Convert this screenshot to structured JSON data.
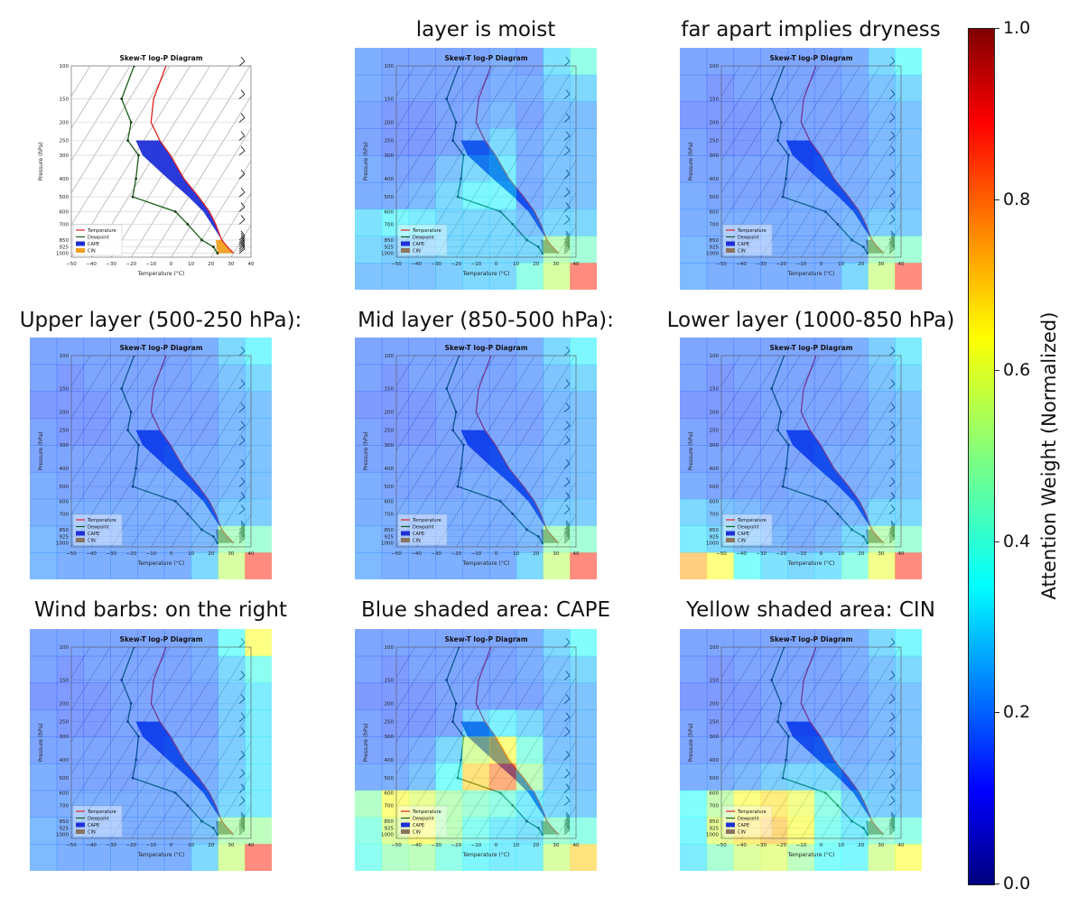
{
  "colorbar": {
    "title": "Attention Weight (Normalized)",
    "min": 0.0,
    "max": 1.0,
    "ticks": [
      "0.0",
      "0.2",
      "0.4",
      "0.6",
      "0.8",
      "1.0"
    ],
    "colormap": "jet"
  },
  "chart_data": [
    {
      "type": "line",
      "panel_title": "",
      "title": "Skew-T log-P Diagram",
      "xlabel": "Temperature (°C)",
      "ylabel": "Pressure (hPa)",
      "x_ticks": [
        "−50",
        "−40",
        "−30",
        "−20",
        "−10",
        "0",
        "10",
        "20",
        "30",
        "40"
      ],
      "pressure_ticks": [
        "100",
        "150",
        "200",
        "250",
        "300",
        "400",
        "500",
        "600",
        "700",
        "850",
        "925",
        "1000"
      ],
      "legend": [
        "Temperature",
        "Dewpoint",
        "CAPE",
        "CIN"
      ],
      "legend_placement": "lower-left",
      "overlay": false
    },
    {
      "type": "heatmap",
      "panel_title": "layer is moist",
      "title": "Skew-T log-P Diagram",
      "xlabel": "Temperature (°C)",
      "ylabel": "Pressure (hPa)",
      "legend": [
        "Temperature",
        "Dewpoint",
        "CAPE",
        "CIN"
      ],
      "overlay": true,
      "attention_grid": [
        [
          0.22,
          0.2,
          0.2,
          0.2,
          0.2,
          0.22,
          0.2,
          0.32,
          0.42
        ],
        [
          0.22,
          0.2,
          0.2,
          0.2,
          0.2,
          0.22,
          0.22,
          0.28,
          0.3
        ],
        [
          0.2,
          0.18,
          0.18,
          0.2,
          0.22,
          0.24,
          0.2,
          0.25,
          0.25
        ],
        [
          0.2,
          0.18,
          0.18,
          0.2,
          0.24,
          0.3,
          0.22,
          0.26,
          0.26
        ],
        [
          0.22,
          0.2,
          0.2,
          0.26,
          0.3,
          0.34,
          0.22,
          0.26,
          0.26
        ],
        [
          0.22,
          0.22,
          0.24,
          0.3,
          0.36,
          0.36,
          0.22,
          0.26,
          0.26
        ],
        [
          0.32,
          0.36,
          0.34,
          0.3,
          0.3,
          0.3,
          0.26,
          0.3,
          0.3
        ],
        [
          0.3,
          0.28,
          0.28,
          0.3,
          0.3,
          0.3,
          0.3,
          0.5,
          0.45
        ],
        [
          0.26,
          0.26,
          0.26,
          0.28,
          0.3,
          0.3,
          0.42,
          0.55,
          0.85
        ]
      ]
    },
    {
      "type": "heatmap",
      "panel_title": "far apart implies dryness",
      "title": "Skew-T log-P Diagram",
      "xlabel": "Temperature (°C)",
      "ylabel": "Pressure (hPa)",
      "legend": [
        "Temperature",
        "Dewpoint",
        "CAPE",
        "CIN"
      ],
      "overlay": true,
      "attention_grid": [
        [
          0.2,
          0.2,
          0.2,
          0.2,
          0.2,
          0.2,
          0.22,
          0.3,
          0.38
        ],
        [
          0.2,
          0.18,
          0.2,
          0.2,
          0.2,
          0.2,
          0.22,
          0.26,
          0.3
        ],
        [
          0.18,
          0.18,
          0.18,
          0.2,
          0.2,
          0.2,
          0.2,
          0.24,
          0.26
        ],
        [
          0.2,
          0.18,
          0.18,
          0.2,
          0.2,
          0.2,
          0.2,
          0.24,
          0.26
        ],
        [
          0.2,
          0.2,
          0.2,
          0.2,
          0.2,
          0.22,
          0.22,
          0.24,
          0.26
        ],
        [
          0.22,
          0.2,
          0.2,
          0.2,
          0.22,
          0.22,
          0.22,
          0.24,
          0.26
        ],
        [
          0.22,
          0.22,
          0.22,
          0.22,
          0.22,
          0.22,
          0.24,
          0.28,
          0.28
        ],
        [
          0.24,
          0.22,
          0.22,
          0.22,
          0.22,
          0.22,
          0.24,
          0.48,
          0.45
        ],
        [
          0.24,
          0.22,
          0.22,
          0.22,
          0.22,
          0.22,
          0.3,
          0.55,
          0.85
        ]
      ]
    },
    {
      "type": "heatmap",
      "panel_title": "Upper layer (500-250 hPa):",
      "title": "Skew-T log-P Diagram",
      "xlabel": "Temperature (°C)",
      "ylabel": "Pressure (hPa)",
      "legend": [
        "Temperature",
        "Dewpoint",
        "CAPE",
        "CIN"
      ],
      "overlay": true,
      "attention_grid": [
        [
          0.2,
          0.2,
          0.2,
          0.2,
          0.2,
          0.2,
          0.22,
          0.3,
          0.36
        ],
        [
          0.2,
          0.18,
          0.2,
          0.2,
          0.2,
          0.2,
          0.22,
          0.26,
          0.3
        ],
        [
          0.18,
          0.18,
          0.18,
          0.2,
          0.2,
          0.2,
          0.2,
          0.24,
          0.26
        ],
        [
          0.2,
          0.18,
          0.18,
          0.2,
          0.2,
          0.2,
          0.2,
          0.24,
          0.26
        ],
        [
          0.2,
          0.2,
          0.2,
          0.2,
          0.2,
          0.22,
          0.22,
          0.24,
          0.26
        ],
        [
          0.22,
          0.2,
          0.2,
          0.2,
          0.22,
          0.22,
          0.22,
          0.24,
          0.26
        ],
        [
          0.22,
          0.22,
          0.22,
          0.22,
          0.22,
          0.22,
          0.24,
          0.28,
          0.28
        ],
        [
          0.24,
          0.22,
          0.22,
          0.22,
          0.22,
          0.22,
          0.24,
          0.48,
          0.45
        ],
        [
          0.24,
          0.22,
          0.22,
          0.22,
          0.22,
          0.22,
          0.3,
          0.55,
          0.85
        ]
      ]
    },
    {
      "type": "heatmap",
      "panel_title": "Mid layer (850-500 hPa):",
      "title": "Skew-T log-P Diagram",
      "xlabel": "Temperature (°C)",
      "ylabel": "Pressure (hPa)",
      "legend": [
        "Temperature",
        "Dewpoint",
        "CAPE",
        "CIN"
      ],
      "overlay": true,
      "attention_grid": [
        [
          0.2,
          0.2,
          0.2,
          0.2,
          0.2,
          0.2,
          0.22,
          0.3,
          0.36
        ],
        [
          0.2,
          0.18,
          0.2,
          0.2,
          0.2,
          0.2,
          0.22,
          0.26,
          0.3
        ],
        [
          0.18,
          0.18,
          0.18,
          0.2,
          0.2,
          0.2,
          0.2,
          0.24,
          0.26
        ],
        [
          0.2,
          0.18,
          0.18,
          0.2,
          0.2,
          0.2,
          0.2,
          0.24,
          0.26
        ],
        [
          0.2,
          0.2,
          0.2,
          0.2,
          0.2,
          0.22,
          0.22,
          0.24,
          0.26
        ],
        [
          0.22,
          0.2,
          0.2,
          0.2,
          0.22,
          0.22,
          0.22,
          0.24,
          0.26
        ],
        [
          0.22,
          0.22,
          0.22,
          0.22,
          0.22,
          0.22,
          0.24,
          0.28,
          0.28
        ],
        [
          0.24,
          0.22,
          0.22,
          0.22,
          0.22,
          0.22,
          0.24,
          0.48,
          0.45
        ],
        [
          0.24,
          0.22,
          0.22,
          0.22,
          0.22,
          0.22,
          0.3,
          0.55,
          0.85
        ]
      ]
    },
    {
      "type": "heatmap",
      "panel_title": "Lower layer (1000-850 hPa)",
      "title": "Skew-T log-P Diagram",
      "xlabel": "Temperature (°C)",
      "ylabel": "Pressure (hPa)",
      "legend": [
        "Temperature",
        "Dewpoint",
        "CAPE",
        "CIN"
      ],
      "overlay": true,
      "attention_grid": [
        [
          0.2,
          0.2,
          0.2,
          0.2,
          0.2,
          0.2,
          0.22,
          0.28,
          0.34
        ],
        [
          0.2,
          0.18,
          0.2,
          0.2,
          0.2,
          0.2,
          0.22,
          0.26,
          0.3
        ],
        [
          0.18,
          0.18,
          0.18,
          0.2,
          0.2,
          0.2,
          0.2,
          0.24,
          0.26
        ],
        [
          0.2,
          0.18,
          0.18,
          0.2,
          0.2,
          0.2,
          0.2,
          0.24,
          0.26
        ],
        [
          0.2,
          0.2,
          0.2,
          0.2,
          0.2,
          0.22,
          0.22,
          0.24,
          0.26
        ],
        [
          0.22,
          0.2,
          0.2,
          0.2,
          0.22,
          0.22,
          0.22,
          0.24,
          0.26
        ],
        [
          0.3,
          0.26,
          0.24,
          0.22,
          0.22,
          0.22,
          0.24,
          0.3,
          0.3
        ],
        [
          0.34,
          0.3,
          0.26,
          0.24,
          0.22,
          0.24,
          0.3,
          0.5,
          0.45
        ],
        [
          0.72,
          0.62,
          0.38,
          0.32,
          0.3,
          0.32,
          0.42,
          0.6,
          0.85
        ]
      ]
    },
    {
      "type": "heatmap",
      "panel_title": "Wind barbs: on the right",
      "title": "Skew-T log-P Diagram",
      "xlabel": "Temperature (°C)",
      "ylabel": "Pressure (hPa)",
      "legend": [
        "Temperature",
        "Dewpoint",
        "CAPE",
        "CIN"
      ],
      "overlay": true,
      "attention_grid": [
        [
          0.2,
          0.2,
          0.2,
          0.2,
          0.2,
          0.2,
          0.22,
          0.38,
          0.62
        ],
        [
          0.2,
          0.18,
          0.2,
          0.2,
          0.2,
          0.2,
          0.22,
          0.3,
          0.4
        ],
        [
          0.18,
          0.18,
          0.18,
          0.2,
          0.2,
          0.2,
          0.2,
          0.28,
          0.34
        ],
        [
          0.2,
          0.18,
          0.18,
          0.2,
          0.2,
          0.2,
          0.2,
          0.28,
          0.34
        ],
        [
          0.2,
          0.2,
          0.2,
          0.2,
          0.2,
          0.22,
          0.22,
          0.28,
          0.34
        ],
        [
          0.22,
          0.2,
          0.2,
          0.2,
          0.22,
          0.22,
          0.22,
          0.28,
          0.34
        ],
        [
          0.22,
          0.22,
          0.22,
          0.22,
          0.22,
          0.22,
          0.24,
          0.3,
          0.34
        ],
        [
          0.24,
          0.22,
          0.22,
          0.22,
          0.22,
          0.22,
          0.26,
          0.5,
          0.5
        ],
        [
          0.24,
          0.22,
          0.22,
          0.22,
          0.22,
          0.22,
          0.3,
          0.55,
          0.85
        ]
      ]
    },
    {
      "type": "heatmap",
      "panel_title": "Blue shaded area: CAPE",
      "title": "Skew-T log-P Diagram",
      "xlabel": "Temperature (°C)",
      "ylabel": "Pressure (hPa)",
      "legend": [
        "Temperature",
        "Dewpoint",
        "CAPE",
        "CIN"
      ],
      "overlay": true,
      "attention_grid": [
        [
          0.2,
          0.2,
          0.2,
          0.2,
          0.2,
          0.2,
          0.22,
          0.3,
          0.38
        ],
        [
          0.2,
          0.18,
          0.2,
          0.2,
          0.2,
          0.2,
          0.22,
          0.26,
          0.3
        ],
        [
          0.18,
          0.18,
          0.18,
          0.2,
          0.2,
          0.2,
          0.2,
          0.24,
          0.26
        ],
        [
          0.2,
          0.18,
          0.18,
          0.2,
          0.3,
          0.35,
          0.3,
          0.24,
          0.26
        ],
        [
          0.2,
          0.2,
          0.22,
          0.3,
          0.55,
          0.62,
          0.42,
          0.26,
          0.26
        ],
        [
          0.22,
          0.22,
          0.26,
          0.38,
          0.68,
          0.78,
          0.5,
          0.28,
          0.26
        ],
        [
          0.48,
          0.62,
          0.58,
          0.5,
          0.45,
          0.42,
          0.34,
          0.3,
          0.28
        ],
        [
          0.42,
          0.56,
          0.62,
          0.5,
          0.4,
          0.34,
          0.32,
          0.45,
          0.42
        ],
        [
          0.4,
          0.48,
          0.5,
          0.42,
          0.36,
          0.34,
          0.34,
          0.55,
          0.68
        ]
      ]
    },
    {
      "type": "heatmap",
      "panel_title": "Yellow shaded area: CIN",
      "title": "Skew-T log-P Diagram",
      "xlabel": "Temperature (°C)",
      "ylabel": "Pressure (hPa)",
      "legend": [
        "Temperature",
        "Dewpoint",
        "CAPE",
        "CIN"
      ],
      "overlay": true,
      "attention_grid": [
        [
          0.2,
          0.2,
          0.2,
          0.2,
          0.2,
          0.2,
          0.22,
          0.3,
          0.36
        ],
        [
          0.2,
          0.18,
          0.2,
          0.2,
          0.2,
          0.2,
          0.22,
          0.26,
          0.3
        ],
        [
          0.18,
          0.18,
          0.18,
          0.2,
          0.2,
          0.2,
          0.2,
          0.24,
          0.26
        ],
        [
          0.2,
          0.18,
          0.18,
          0.2,
          0.2,
          0.2,
          0.2,
          0.24,
          0.26
        ],
        [
          0.2,
          0.2,
          0.2,
          0.2,
          0.22,
          0.24,
          0.22,
          0.24,
          0.26
        ],
        [
          0.22,
          0.22,
          0.24,
          0.28,
          0.3,
          0.3,
          0.24,
          0.26,
          0.26
        ],
        [
          0.38,
          0.52,
          0.62,
          0.66,
          0.6,
          0.42,
          0.3,
          0.28,
          0.28
        ],
        [
          0.36,
          0.58,
          0.66,
          0.7,
          0.62,
          0.4,
          0.34,
          0.45,
          0.42
        ],
        [
          0.34,
          0.46,
          0.56,
          0.58,
          0.5,
          0.38,
          0.36,
          0.55,
          0.62
        ]
      ]
    }
  ]
}
